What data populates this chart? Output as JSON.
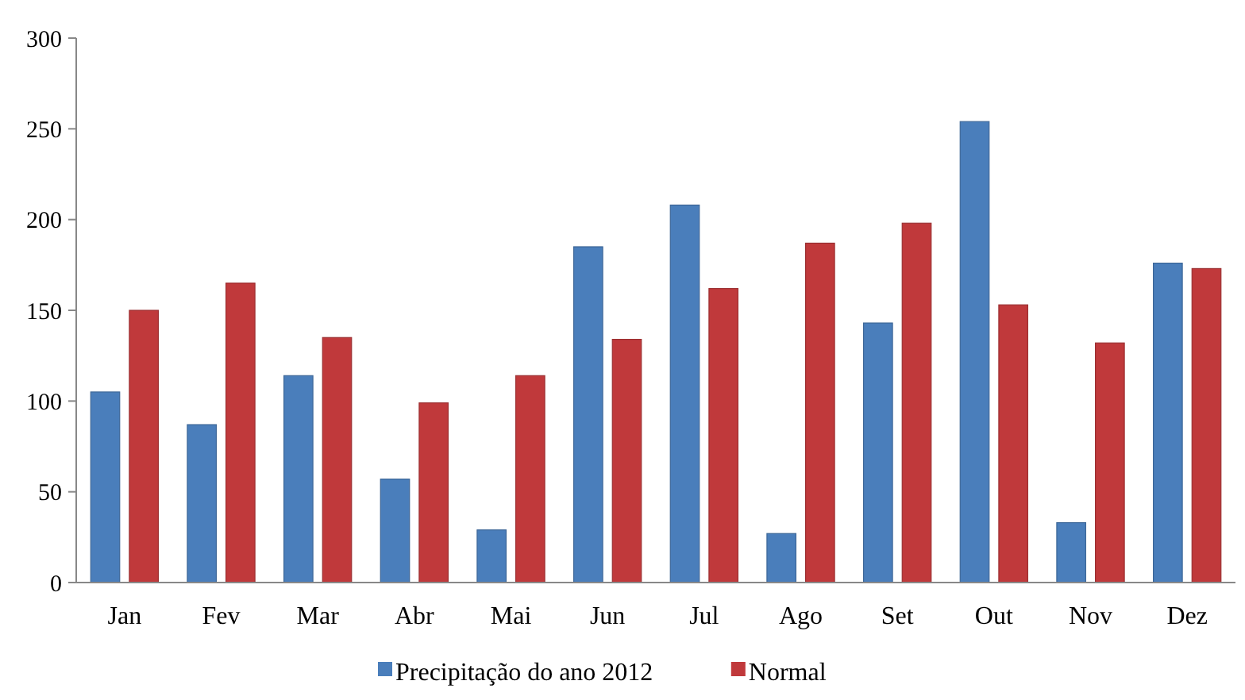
{
  "chart_data": {
    "type": "bar",
    "categories": [
      "Jan",
      "Fev",
      "Mar",
      "Abr",
      "Mai",
      "Jun",
      "Jul",
      "Ago",
      "Set",
      "Out",
      "Nov",
      "Dez"
    ],
    "series": [
      {
        "name": "Precipitação do ano 2012",
        "color": "#4a7ebb",
        "values": [
          105,
          87,
          114,
          57,
          29,
          185,
          208,
          27,
          143,
          254,
          33,
          176
        ]
      },
      {
        "name": "Normal",
        "color": "#c0393b",
        "values": [
          150,
          165,
          135,
          99,
          114,
          134,
          162,
          187,
          198,
          153,
          132,
          173
        ]
      }
    ],
    "ylim": [
      0,
      300
    ],
    "yticks": [
      0,
      50,
      100,
      150,
      200,
      250,
      300
    ],
    "grid": false,
    "legend": "bottom"
  }
}
